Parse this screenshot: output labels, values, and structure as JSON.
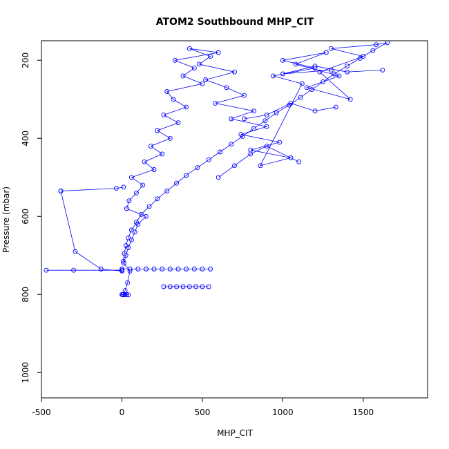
{
  "chart_data": {
    "type": "scatter",
    "title": "ATOM2 Southbound MHP_CIT",
    "xlabel": "MHP_CIT",
    "ylabel": "Pressure (mbar)",
    "xlim": [
      -500,
      1900
    ],
    "ylim": [
      1065,
      150
    ],
    "y_reversed": true,
    "x_ticks": [
      -500,
      0,
      500,
      1000,
      1500
    ],
    "y_ticks": [
      200,
      400,
      600,
      800,
      1000
    ],
    "grid": false,
    "marker": "open-circle",
    "connected": true,
    "color": "#0000ff",
    "series": [
      {
        "x": [
          10,
          20,
          35,
          50,
          12,
          25,
          40,
          60,
          80,
          100,
          150,
          30,
          45,
          90,
          130,
          60,
          200,
          140,
          250,
          180,
          300,
          220,
          350,
          260,
          400,
          320,
          280,
          500,
          380,
          450,
          330,
          600,
          420,
          550,
          480,
          700,
          520,
          650,
          760,
          580,
          820,
          680,
          900,
          740,
          980,
          800,
          1050,
          860,
          1120,
          940,
          1200,
          1000,
          1270,
          1080,
          1350,
          1150,
          1420,
          1230,
          1500,
          1300,
          1580,
          1650,
          1560,
          1480,
          1400,
          1320,
          1250,
          1180,
          1110,
          1040,
          960,
          890,
          820,
          750,
          680,
          610,
          540,
          470,
          400,
          340,
          280,
          220,
          170,
          120,
          90,
          60,
          40,
          25,
          15,
          8
        ],
        "y": [
          800,
          790,
          770,
          740,
          720,
          700,
          680,
          660,
          640,
          620,
          600,
          580,
          560,
          540,
          520,
          500,
          480,
          460,
          440,
          420,
          400,
          380,
          360,
          340,
          320,
          300,
          280,
          260,
          240,
          220,
          200,
          180,
          170,
          190,
          210,
          230,
          250,
          270,
          290,
          310,
          330,
          350,
          370,
          390,
          410,
          430,
          450,
          470,
          260,
          240,
          220,
          200,
          180,
          210,
          240,
          270,
          300,
          230,
          190,
          170,
          160,
          155,
          175,
          195,
          215,
          235,
          255,
          275,
          295,
          315,
          335,
          355,
          375,
          395,
          415,
          435,
          455,
          475,
          495,
          515,
          535,
          555,
          575,
          595,
          615,
          635,
          655,
          675,
          695,
          715
        ]
      },
      {
        "x": [
          0,
          50,
          100,
          150,
          200,
          250,
          300,
          350,
          400,
          450,
          500,
          550
        ],
        "y": [
          735,
          735,
          735,
          735,
          735,
          735,
          735,
          735,
          735,
          735,
          735,
          735
        ]
      },
      {
        "x": [
          260,
          300,
          340,
          380,
          420,
          460,
          500,
          540
        ],
        "y": [
          780,
          780,
          780,
          780,
          780,
          780,
          780,
          780
        ]
      },
      {
        "x": [
          -470,
          -300,
          0
        ],
        "y": [
          738,
          738,
          738
        ]
      },
      {
        "x": [
          -380,
          -290,
          -130,
          0
        ],
        "y": [
          535,
          690,
          735,
          740
        ]
      },
      {
        "x": [
          -380,
          -35,
          10
        ],
        "y": [
          535,
          528,
          525
        ]
      },
      {
        "x": [
          0,
          5,
          10,
          20,
          30,
          40
        ],
        "y": [
          800,
          801,
          800,
          801,
          800,
          801
        ]
      },
      {
        "x": [
          1100,
          900,
          800,
          700,
          600
        ],
        "y": [
          460,
          420,
          440,
          470,
          500
        ]
      },
      {
        "x": [
          1620,
          1400,
          1200,
          1000,
          1300
        ],
        "y": [
          225,
          230,
          215,
          235,
          225
        ]
      },
      {
        "x": [
          1330,
          1200,
          1050,
          900,
          760
        ],
        "y": [
          320,
          330,
          310,
          340,
          350
        ]
      }
    ]
  }
}
